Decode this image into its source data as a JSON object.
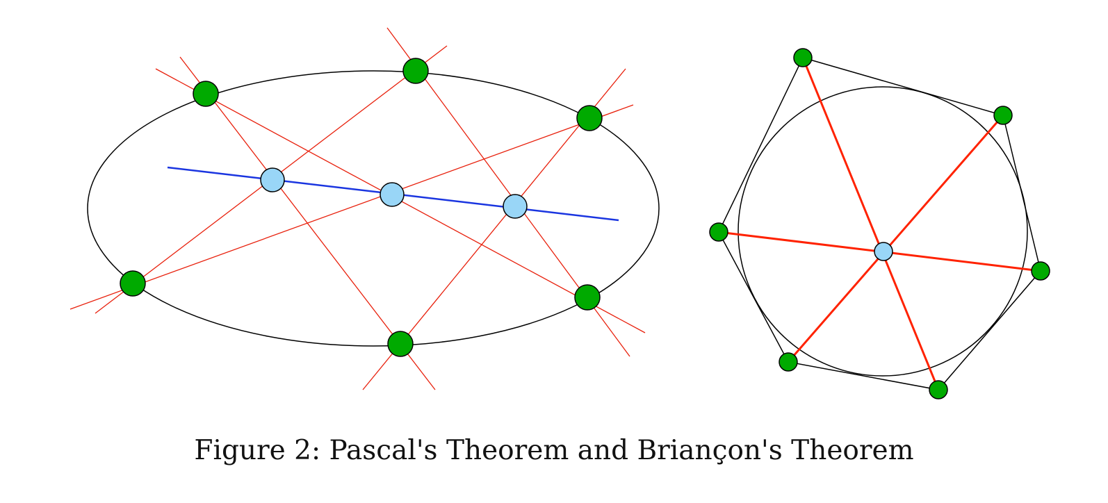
{
  "caption": "Figure 2: Pascal's Theorem and Briançon's Theorem",
  "colors": {
    "background": "#ffffff",
    "conic": "#000000",
    "hexagon_vertex_fill": "#00aa00",
    "intersection_fill": "#99d6f7",
    "pascal_lines": "#e8200c",
    "pascal_line": "#1a35e0",
    "tangent_hexagon": "#000000",
    "brianchon_diagonals": "#ff2200",
    "point_outline": "#000000"
  },
  "diagrams": [
    {
      "name": "pascal",
      "conic": "ellipse",
      "vertex_count": 6,
      "collinear_intersection_count": 3
    },
    {
      "name": "brianchon",
      "conic": "circle",
      "vertex_count": 6,
      "concurrent_point_count": 1
    }
  ]
}
